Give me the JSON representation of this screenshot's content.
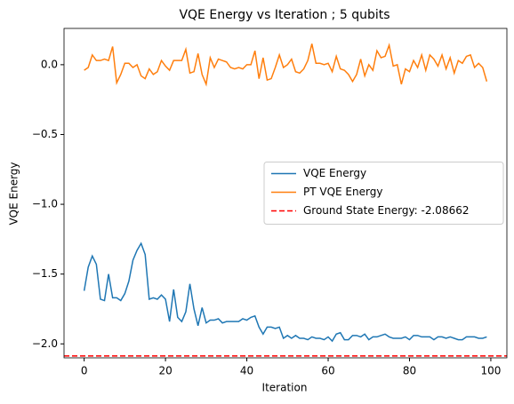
{
  "chart_data": {
    "type": "line",
    "title": "VQE Energy vs Iteration ; 5 qubits",
    "xlabel": "Iteration",
    "ylabel": "VQE Energy",
    "x": [
      0,
      1,
      2,
      3,
      4,
      5,
      6,
      7,
      8,
      9,
      10,
      11,
      12,
      13,
      14,
      15,
      16,
      17,
      18,
      19,
      20,
      21,
      22,
      23,
      24,
      25,
      26,
      27,
      28,
      29,
      30,
      31,
      32,
      33,
      34,
      35,
      36,
      37,
      38,
      39,
      40,
      41,
      42,
      43,
      44,
      45,
      46,
      47,
      48,
      49,
      50,
      51,
      52,
      53,
      54,
      55,
      56,
      57,
      58,
      59,
      60,
      61,
      62,
      63,
      64,
      65,
      66,
      67,
      68,
      69,
      70,
      71,
      72,
      73,
      74,
      75,
      76,
      77,
      78,
      79,
      80,
      81,
      82,
      83,
      84,
      85,
      86,
      87,
      88,
      89,
      90,
      91,
      92,
      93,
      94,
      95,
      96,
      97,
      98,
      99
    ],
    "series": [
      {
        "name": "VQE Energy",
        "color": "#1f77b4",
        "values": [
          -1.62,
          -1.45,
          -1.37,
          -1.43,
          -1.68,
          -1.69,
          -1.5,
          -1.67,
          -1.67,
          -1.69,
          -1.64,
          -1.55,
          -1.4,
          -1.33,
          -1.28,
          -1.36,
          -1.68,
          -1.67,
          -1.68,
          -1.65,
          -1.68,
          -1.84,
          -1.61,
          -1.81,
          -1.84,
          -1.77,
          -1.57,
          -1.75,
          -1.87,
          -1.74,
          -1.85,
          -1.83,
          -1.83,
          -1.82,
          -1.85,
          -1.84,
          -1.84,
          -1.84,
          -1.84,
          -1.82,
          -1.83,
          -1.81,
          -1.8,
          -1.88,
          -1.93,
          -1.88,
          -1.88,
          -1.89,
          -1.88,
          -1.96,
          -1.94,
          -1.96,
          -1.94,
          -1.96,
          -1.96,
          -1.97,
          -1.95,
          -1.96,
          -1.96,
          -1.97,
          -1.95,
          -1.98,
          -1.93,
          -1.92,
          -1.97,
          -1.97,
          -1.94,
          -1.94,
          -1.95,
          -1.93,
          -1.97,
          -1.95,
          -1.95,
          -1.94,
          -1.93,
          -1.95,
          -1.96,
          -1.96,
          -1.96,
          -1.95,
          -1.97,
          -1.94,
          -1.94,
          -1.95,
          -1.95,
          -1.95,
          -1.97,
          -1.95,
          -1.95,
          -1.96,
          -1.95,
          -1.96,
          -1.97,
          -1.97,
          -1.95,
          -1.95,
          -1.95,
          -1.96,
          -1.96,
          -1.95
        ]
      },
      {
        "name": "PT VQE Energy",
        "color": "#ff7f0e",
        "values": [
          -0.04,
          -0.02,
          0.07,
          0.03,
          0.03,
          0.04,
          0.03,
          0.13,
          -0.13,
          -0.07,
          0.01,
          0.01,
          -0.02,
          0.0,
          -0.08,
          -0.1,
          -0.03,
          -0.07,
          -0.05,
          0.03,
          -0.01,
          -0.04,
          0.03,
          0.03,
          0.03,
          0.11,
          -0.06,
          -0.05,
          0.08,
          -0.07,
          -0.14,
          0.05,
          -0.02,
          0.04,
          0.03,
          0.02,
          -0.02,
          -0.03,
          -0.02,
          -0.03,
          0.0,
          0.0,
          0.1,
          -0.1,
          0.05,
          -0.11,
          -0.1,
          -0.02,
          0.07,
          -0.02,
          0.0,
          0.04,
          -0.05,
          -0.06,
          -0.03,
          0.03,
          0.15,
          0.01,
          0.01,
          0.0,
          0.01,
          -0.05,
          0.06,
          -0.03,
          -0.04,
          -0.07,
          -0.12,
          -0.07,
          0.04,
          -0.08,
          0.0,
          -0.04,
          0.1,
          0.05,
          0.06,
          0.14,
          -0.01,
          0.0,
          -0.14,
          -0.03,
          -0.05,
          0.03,
          -0.02,
          0.07,
          -0.04,
          0.07,
          0.04,
          -0.01,
          0.07,
          -0.03,
          0.05,
          -0.06,
          0.03,
          0.01,
          0.06,
          0.07,
          -0.02,
          0.01,
          -0.02,
          -0.12
        ]
      }
    ],
    "hlines": [
      {
        "name": "Ground State Energy: -2.08662",
        "value": -2.08662,
        "color": "#ff0000",
        "dashed": true
      }
    ],
    "xlim": [
      -4.95,
      103.95
    ],
    "xticks": [
      0,
      20,
      40,
      60,
      80,
      100
    ],
    "ylim": [
      -2.1,
      0.26
    ],
    "yticks": [
      {
        "value": 0,
        "label": "0.0"
      },
      {
        "value": -0.5,
        "label": "−0.5"
      },
      {
        "value": -1,
        "label": "−1.0"
      },
      {
        "value": -1.5,
        "label": "−1.5"
      },
      {
        "value": -2,
        "label": "−2.0"
      }
    ],
    "legend": "center right"
  }
}
